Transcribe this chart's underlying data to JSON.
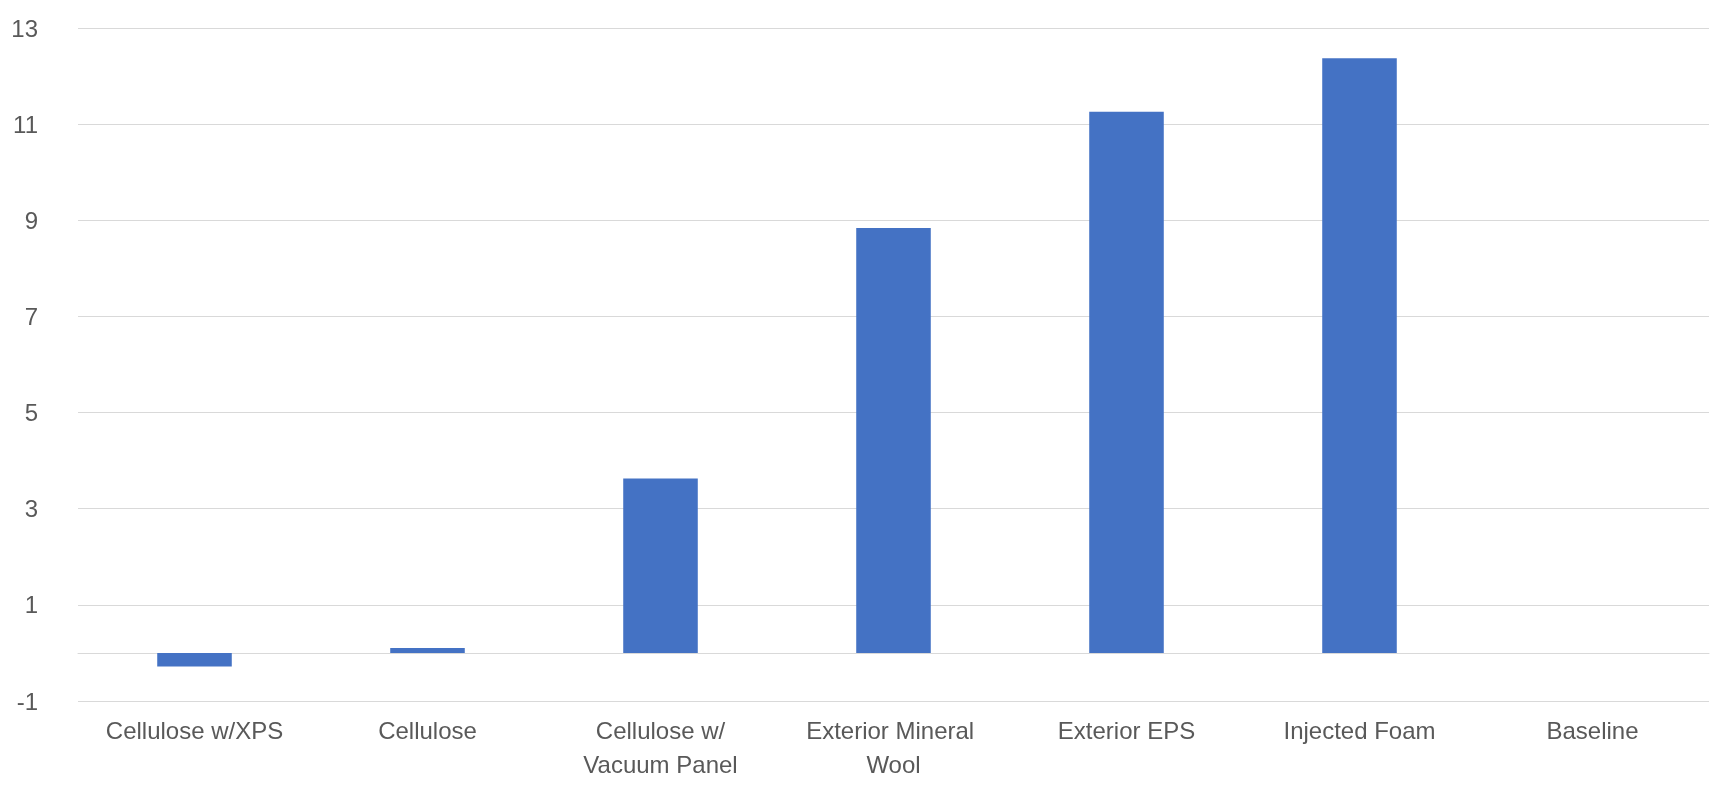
{
  "chart_data": {
    "type": "bar",
    "categories": [
      "Cellulose w/XPS",
      "Cellulose",
      "Cellulose w/Vacuum Panel",
      "Exterior Mineral Wool",
      "Exterior EPS",
      "Injected Foam",
      "Baseline"
    ],
    "values": [
      -0.28,
      0.1,
      3.63,
      8.84,
      11.26,
      12.37,
      0
    ],
    "color": "#4472c4",
    "ylim": [
      -1,
      13
    ],
    "yticks": [
      -1,
      1,
      3,
      5,
      7,
      9,
      11,
      13
    ],
    "grid": "y"
  }
}
